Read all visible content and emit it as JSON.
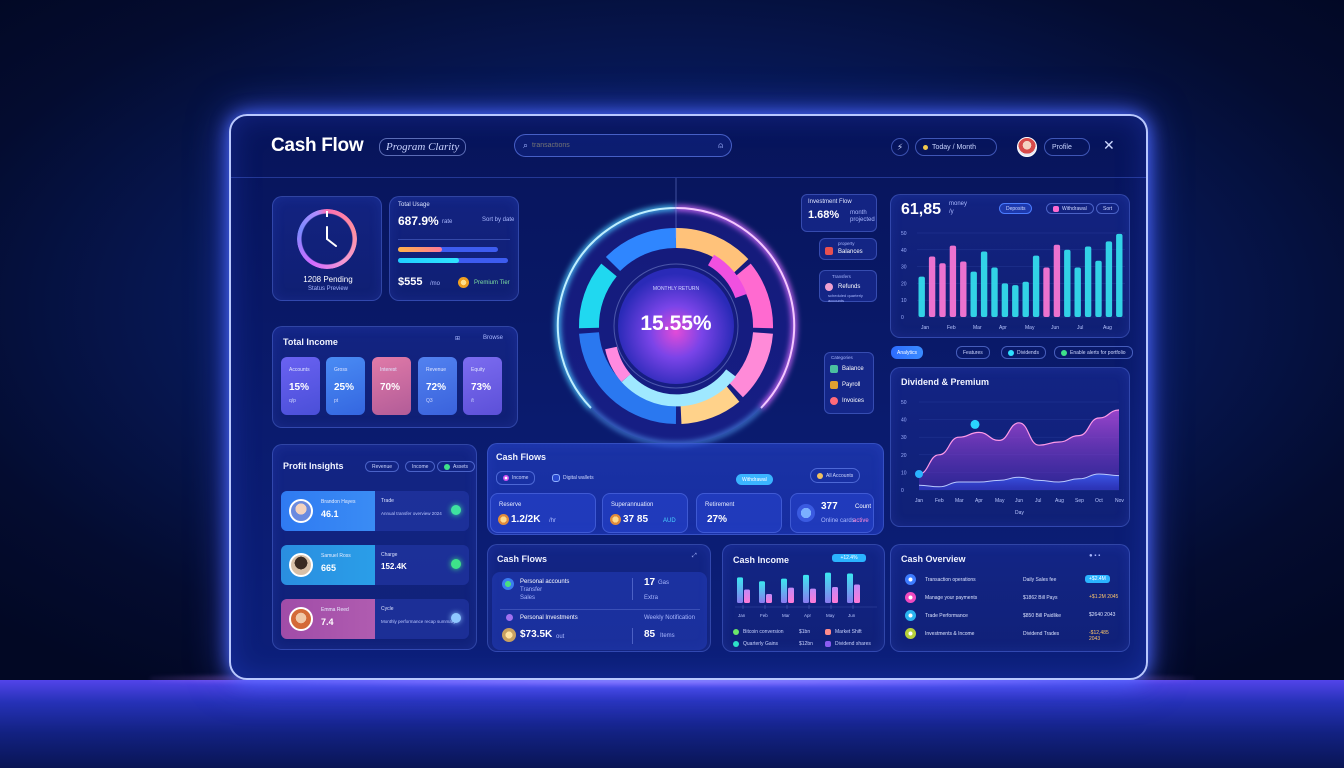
{
  "app": {
    "title": "Cash Flow",
    "subtitle_pill": "Program Clarity"
  },
  "search": {
    "placeholder": "transactions",
    "value": ""
  },
  "topbar": {
    "filter_pill": "Today / Month",
    "profile_pill": "Profile"
  },
  "clock_card": {
    "label": "1208 Pending",
    "sub": "Status Preview"
  },
  "balance_card": {
    "title": "Total Usage",
    "value": "687.9%",
    "value_unit": "rate",
    "right_note": "Sort by date",
    "bar1_pct": 44,
    "bar2_pct": 55,
    "amount": "$555",
    "amount_unit": "/mo",
    "coin_label": "Premium Tier"
  },
  "total_income": {
    "title": "Total Income",
    "right_label": "Browse",
    "tiles": [
      {
        "label": "Accounts",
        "value": "15%",
        "sub": "q/p",
        "color": "#5a5ff0"
      },
      {
        "label": "Gross",
        "value": "25%",
        "sub": "pt",
        "color": "#3f7bea"
      },
      {
        "label": "Interest",
        "value": "70%",
        "sub": "",
        "color": "#c4699e"
      },
      {
        "label": "Revenue",
        "value": "72%",
        "sub": "Q3",
        "color": "#4c74e8"
      },
      {
        "label": "Equity",
        "value": "73%",
        "sub": "/t",
        "color": "#7065e8"
      }
    ]
  },
  "profit_insights": {
    "title": "Profit Insights",
    "pills": [
      "Revenue",
      "Income",
      "Assets"
    ],
    "rows": [
      {
        "name": "Brandon Hayes",
        "value": "46.1",
        "value_unit": "mo",
        "right_label": "Trade",
        "right_value": "",
        "right_sub": "Annual transfer overview 2024",
        "left_color": "#2f78f0",
        "gem": "#3ee2a0"
      },
      {
        "name": "Samuel Ross",
        "value": "665",
        "value_unit": "mo",
        "right_label": "Charge",
        "right_value": "152.4K",
        "right_sub": "Balance",
        "left_color": "#2a8fe0",
        "gem": "#3ee28a"
      },
      {
        "name": "Emma Reed",
        "value": "7.4",
        "value_unit": "",
        "right_label": "Cycle",
        "right_value": "",
        "right_sub": "Monthly performance recap summary",
        "left_color": "#a24ea8",
        "gem": "#8fc8ff"
      }
    ]
  },
  "donut": {
    "center_label": "MONTHLY RETURN",
    "center_value": "15.55%",
    "segments": [
      {
        "name": "Blue",
        "color": "#2f86ff"
      },
      {
        "name": "Cyan",
        "color": "#20d8f0"
      },
      {
        "name": "Peach",
        "color": "#ffc27a"
      },
      {
        "name": "Magenta",
        "color": "#f05ae0"
      },
      {
        "name": "Pink",
        "color": "#ff78c8"
      },
      {
        "name": "Light Cyan",
        "color": "#8fe8ff"
      }
    ]
  },
  "right_callouts": {
    "invest": {
      "label": "Investment Flow",
      "value": "1.68%",
      "unit": "month",
      "sub": "projected"
    },
    "chip1": {
      "top": "property",
      "label": "Balances"
    },
    "chip2": {
      "top": "Transfers",
      "label": "Refunds",
      "sub": "scheduled quarterly accounts"
    },
    "stack_title": "Categories",
    "stack": [
      "Balance",
      "Payroll",
      "Invoices"
    ]
  },
  "bar_chart_card": {
    "value": "61,85",
    "unit": "money",
    "unit2": "/y",
    "pills": [
      "Deposits",
      "Withdrawal",
      "Sort"
    ]
  },
  "chart_data": [
    {
      "type": "bar",
      "title": "61,85",
      "legend": [
        "Deposits",
        "Withdrawal"
      ],
      "categories": [
        "Jan",
        "",
        "",
        "",
        "",
        "",
        "",
        "",
        "",
        "",
        "",
        "",
        "",
        "",
        "",
        "",
        "",
        "",
        "",
        ""
      ],
      "series": [
        {
          "name": "values",
          "values": [
            48,
            72,
            64,
            85,
            66,
            54,
            78,
            59,
            40,
            38,
            42,
            73,
            59,
            86,
            80,
            59,
            84,
            67,
            90,
            99
          ]
        },
        {
          "name": "color",
          "values": [
            0,
            1,
            1,
            1,
            1,
            0,
            0,
            0,
            0,
            0,
            0,
            0,
            1,
            1,
            0,
            0,
            0,
            0,
            0,
            0
          ]
        }
      ],
      "xlabels": [
        "Jan",
        "Feb",
        "Mar",
        "Apr",
        "May",
        "Jun",
        "Jul",
        "Aug"
      ],
      "ylabels": [
        "0",
        "10",
        "20",
        "30",
        "40",
        "50"
      ],
      "ylim": [
        0,
        50
      ]
    },
    {
      "type": "area",
      "title": "Dividend & Premium",
      "x": [
        "Jan",
        "Feb",
        "Mar",
        "Apr",
        "May",
        "Jun",
        "Jul",
        "Aug",
        "Sep",
        "Oct",
        "Nov"
      ],
      "series": [
        {
          "name": "Premium",
          "values": [
            10,
            22,
            33,
            36,
            31,
            42,
            28,
            30,
            34,
            45,
            50
          ]
        },
        {
          "name": "Dividend",
          "values": [
            3,
            2,
            5,
            5,
            6,
            8,
            6,
            5,
            7,
            10,
            9
          ]
        }
      ],
      "ylabels": [
        "0",
        "10",
        "20",
        "30",
        "40",
        "50"
      ],
      "xlabel": "Day",
      "ylim": [
        0,
        55
      ]
    },
    {
      "type": "bar",
      "title": "Cash Income",
      "categories": [
        "Jan",
        "Feb",
        "Mar",
        "Apr",
        "May",
        "Jun"
      ],
      "series": [
        {
          "name": "Cyan",
          "values": [
            80,
            68,
            76,
            88,
            95,
            92
          ]
        },
        {
          "name": "Pink",
          "values": [
            42,
            28,
            48,
            45,
            50,
            58
          ]
        }
      ]
    }
  ],
  "area_card": {
    "tabs": [
      "Analytics",
      "Features",
      "Dividends",
      "Enable alerts for portfolio"
    ],
    "title": "Dividend & Premium",
    "xlabel": "Day",
    "xlabels": [
      "Jan",
      "Feb",
      "Mar",
      "Apr",
      "May",
      "Jun",
      "Jul",
      "Aug",
      "Sep",
      "Oct",
      "Nov"
    ]
  },
  "cash_flow_card": {
    "title": "Cash Flows",
    "chip1": "Income",
    "chip2": "Digital wallets",
    "chip2_sub": "Payment Spotify",
    "action_button": "Withdrawal",
    "right_pill": "All Accounts",
    "tiles": [
      {
        "label": "Reserve",
        "value": "1.2/2K",
        "unit": "/hr"
      },
      {
        "label": "Superannuation",
        "value": "37 85",
        "unit": "AUD"
      },
      {
        "label": "Retirement",
        "value": "27%",
        "unit": ""
      },
      {
        "label": "",
        "value": "377",
        "unit": "Count",
        "sub": "Online cards",
        "sub2": "active"
      }
    ]
  },
  "cash_flows_list": {
    "title": "Cash Flows",
    "rows": [
      {
        "title": "Personal accounts",
        "sub1": "Transfer",
        "sub2": "Sales",
        "right_value": "17",
        "right_unit": "Gas",
        "right_sub": "Extra"
      },
      {
        "title": "Personal Investments",
        "big_value": "$73.5K",
        "big_unit": "out",
        "right_top": "Weekly Notification",
        "right_value": "85",
        "right_unit": "Items"
      }
    ]
  },
  "cash_income": {
    "title": "Cash Income",
    "badge": "+12.4%",
    "xlabels": [
      "Jan",
      "Feb",
      "Mar",
      "Apr",
      "May",
      "Jun"
    ],
    "legend": [
      {
        "label": "Bitcoin conversion",
        "value": "$1bn",
        "color": "#6be86a"
      },
      {
        "label": "Quarterly Gains",
        "value": "$12bn",
        "color": "#2de0c8"
      },
      {
        "label": "Market Shift",
        "value": "",
        "color": "#ff8c8c"
      },
      {
        "label": "Dividend shares",
        "value": "",
        "color": "#8a5cf0"
      }
    ]
  },
  "cash_overview": {
    "title": "Cash Overview",
    "rows": [
      {
        "name": "Transaction operations",
        "desc": "Daily Sales fee",
        "amount": "+$2.4M",
        "icon_color": "#3d7cff",
        "amount_style": "badge"
      },
      {
        "name": "Manage your payments",
        "desc": "$1862 Bill Pays",
        "amount": "+$1.2M 2045",
        "icon_color": "#f04ac0",
        "amount_style": "gold"
      },
      {
        "name": "Trade Performance",
        "desc": "$850 Bill Paidlike",
        "amount": "$2640 2043",
        "icon_color": "#2ab4f0",
        "amount_style": "plain"
      },
      {
        "name": "Investments & Income",
        "desc": "Dividend Trades",
        "amount": "-$12,485 2043",
        "icon_color": "#b6d03a",
        "amount_style": "gold"
      }
    ]
  }
}
